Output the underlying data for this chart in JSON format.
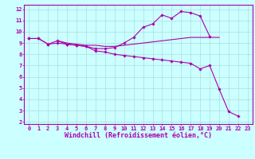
{
  "x": [
    0,
    1,
    2,
    3,
    4,
    5,
    6,
    7,
    8,
    9,
    10,
    11,
    12,
    13,
    14,
    15,
    16,
    17,
    18,
    19,
    20,
    21,
    22,
    23
  ],
  "line1": [
    9.4,
    9.4,
    8.9,
    9.2,
    8.9,
    8.8,
    8.7,
    8.5,
    8.5,
    8.6,
    9.0,
    9.5,
    10.4,
    10.7,
    11.5,
    11.2,
    11.8,
    11.7,
    11.4,
    9.6,
    null,
    null,
    null,
    null
  ],
  "line2": [
    9.4,
    null,
    null,
    9.2,
    9.0,
    8.9,
    8.8,
    8.8,
    8.7,
    8.7,
    8.8,
    8.9,
    9.0,
    9.1,
    9.2,
    9.3,
    9.4,
    9.5,
    9.5,
    9.5,
    9.5,
    null,
    null,
    null
  ],
  "line3": [
    9.4,
    9.4,
    8.9,
    9.0,
    8.9,
    8.8,
    8.7,
    8.3,
    8.2,
    8.0,
    7.9,
    7.8,
    7.7,
    7.6,
    7.5,
    7.4,
    7.3,
    7.2,
    6.7,
    7.0,
    4.9,
    2.9,
    2.5,
    null
  ],
  "color": "#aa00aa",
  "bg_color": "#ccffff",
  "grid_color": "#aadddd",
  "xlabel": "Windchill (Refroidissement éolien,°C)",
  "ylim": [
    2,
    12
  ],
  "xlim": [
    0,
    23
  ],
  "yticks": [
    2,
    3,
    4,
    5,
    6,
    7,
    8,
    9,
    10,
    11,
    12
  ],
  "xticks": [
    0,
    1,
    2,
    3,
    4,
    5,
    6,
    7,
    8,
    9,
    10,
    11,
    12,
    13,
    14,
    15,
    16,
    17,
    18,
    19,
    20,
    21,
    22,
    23
  ],
  "tick_label_fontsize": 5.0,
  "xlabel_fontsize": 6.0
}
